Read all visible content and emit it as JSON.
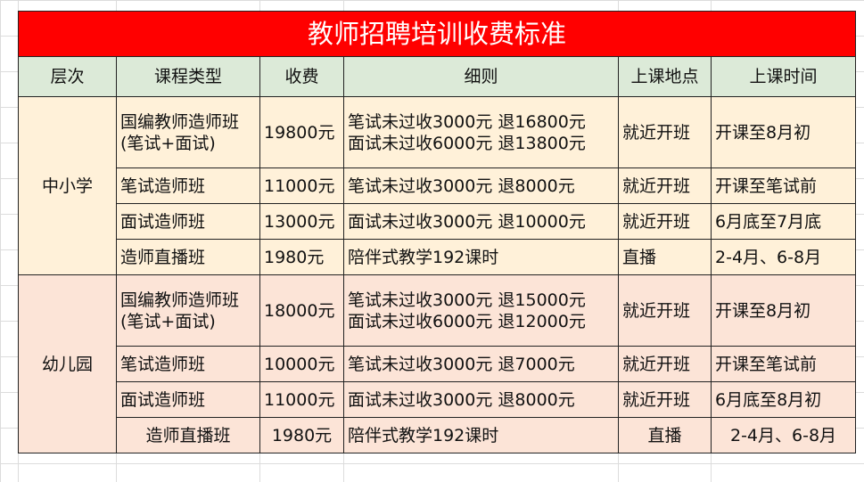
{
  "title": "教师招聘培训收费标准",
  "headers": [
    "层次",
    "课程类型",
    "收费",
    "细则",
    "上课地点",
    "上课时间"
  ],
  "groups": [
    {
      "level": "中小学",
      "rows": [
        {
          "course": [
            "国编教师造师班",
            "(笔试+面试)"
          ],
          "fee": "19800元",
          "rules": [
            "笔试未过收3000元 退16800元",
            "面试未过收6000元 退13800元"
          ],
          "place": "就近开班",
          "time": "开课至8月初"
        },
        {
          "course": [
            "笔试造师班"
          ],
          "fee": "11000元",
          "rules": [
            "笔试未过收3000元  退8000元"
          ],
          "place": "就近开班",
          "time": "开课至笔试前"
        },
        {
          "course": [
            "面试造师班"
          ],
          "fee": "13000元",
          "rules": [
            "面试未过收3000元  退10000元"
          ],
          "place": "就近开班",
          "time": "6月底至7月底"
        },
        {
          "course": [
            "造师直播班"
          ],
          "fee": "1980元",
          "rules": [
            "陪伴式教学192课时"
          ],
          "place": "直播",
          "time": "2-4月、6-8月"
        }
      ]
    },
    {
      "level": "幼儿园",
      "rows": [
        {
          "course": [
            "国编教师造师班",
            "(笔试+面试)"
          ],
          "fee": "18000元",
          "rules": [
            "笔试未过收3000元 退15000元",
            "面试未过收6000元 退12000元"
          ],
          "place": "就近开班",
          "time": "开课至8月初"
        },
        {
          "course": [
            "笔试造师班"
          ],
          "fee": "10000元",
          "rules": [
            "笔试未过收3000元  退7000元"
          ],
          "place": "就近开班",
          "time": "开课至笔试前"
        },
        {
          "course": [
            "面试造师班"
          ],
          "fee": "11000元",
          "rules": [
            "面试未过收3000元  退8000元"
          ],
          "place": "就近开班",
          "time": "6月底至8月初"
        },
        {
          "course": [
            "造师直播班"
          ],
          "fee": "1980元",
          "rules": [
            "陪伴式教学192课时"
          ],
          "place": "直播",
          "time": "2-4月、6-8月"
        }
      ]
    }
  ],
  "colors": {
    "title_bg": "#ff0000",
    "header_bg": "#dcead8",
    "group1_bg": "#fff1d9",
    "group2_bg": "#fce4d7"
  }
}
